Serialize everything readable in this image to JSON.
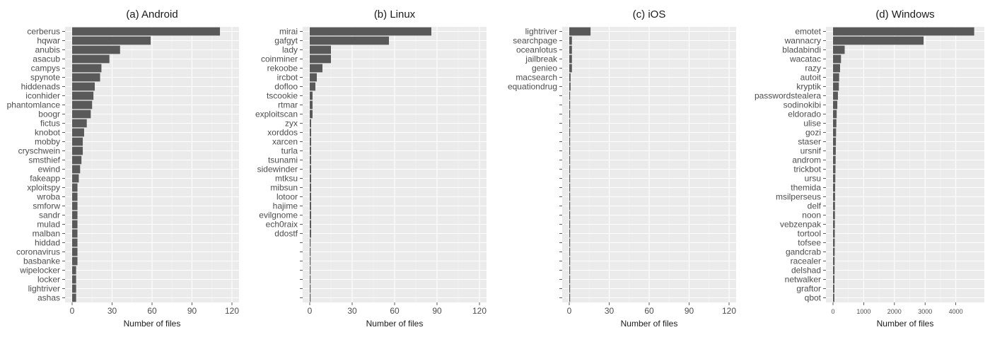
{
  "chart_data": [
    {
      "type": "bar",
      "orientation": "horizontal",
      "title": "(a) Android",
      "xlabel": "Number of files",
      "ylabel": "",
      "xlim": [
        0,
        120
      ],
      "xticks": [
        0,
        30,
        60,
        90,
        120
      ],
      "grid": true,
      "bar_color": "#595959",
      "categories": [
        "cerberus",
        "hqwar",
        "anubis",
        "asacub",
        "campys",
        "spynote",
        "hiddenads",
        "iconhider",
        "phantomlance",
        "boogr",
        "fictus",
        "knobot",
        "mobby",
        "cryschwein",
        "smsthief",
        "ewind",
        "fakeapp",
        "xploitspy",
        "wroba",
        "smforw",
        "sandr",
        "mulad",
        "malban",
        "hiddad",
        "coronavirus",
        "basbanke",
        "wipelocker",
        "locker",
        "lightriver",
        "ashas"
      ],
      "values": [
        111,
        59,
        36,
        28,
        22,
        21,
        17,
        16,
        15,
        14,
        11,
        9,
        8,
        8,
        7,
        6,
        5,
        4,
        4,
        4,
        4,
        4,
        4,
        4,
        4,
        4,
        3,
        3,
        3,
        3
      ]
    },
    {
      "type": "bar",
      "orientation": "horizontal",
      "title": "(b) Linux",
      "xlabel": "Number of files",
      "ylabel": "",
      "xlim": [
        0,
        120
      ],
      "xticks": [
        0,
        30,
        60,
        90,
        120
      ],
      "grid": true,
      "bar_color": "#595959",
      "categories": [
        "mirai",
        "gafgyt",
        "lady",
        "coinminer",
        "rekoobe",
        "ircbot",
        "dofloo",
        "tscookie",
        "rtmar",
        "exploitscan",
        "zyx",
        "xorddos",
        "xarcen",
        "turla",
        "tsunami",
        "sidewinder",
        "mtksu",
        "mibsun",
        "lotoor",
        "hajime",
        "evilgnome",
        "ech0raix",
        "ddostf",
        "",
        "",
        "",
        "",
        "",
        "",
        ""
      ],
      "values": [
        86,
        56,
        15,
        15,
        9,
        5,
        4,
        2,
        2,
        2,
        1,
        1,
        1,
        1,
        1,
        1,
        1,
        1,
        1,
        1,
        1,
        1,
        1,
        0.5,
        0.5,
        0.5,
        0.5,
        0.5,
        0.5,
        0.5
      ]
    },
    {
      "type": "bar",
      "orientation": "horizontal",
      "title": "(c) iOS",
      "xlabel": "Number of files",
      "ylabel": "",
      "xlim": [
        0,
        120
      ],
      "xticks": [
        0,
        30,
        60,
        90,
        120
      ],
      "grid": true,
      "bar_color": "#595959",
      "categories": [
        "lightriver",
        "searchpage",
        "oceanlotus",
        "jailbreak",
        "genieo",
        "macsearch",
        "equationdrug",
        "",
        "",
        "",
        "",
        "",
        "",
        "",
        "",
        "",
        "",
        "",
        "",
        "",
        "",
        "",
        "",
        "",
        "",
        "",
        "",
        "",
        "",
        ""
      ],
      "values": [
        16,
        2,
        2,
        2,
        2,
        1,
        1,
        0.5,
        0.5,
        0.5,
        0.5,
        0.5,
        0.5,
        0.5,
        0.5,
        0.5,
        0.5,
        0.5,
        0.5,
        0.5,
        0.5,
        0.5,
        0.5,
        0.5,
        0.5,
        0.5,
        0.5,
        0.5,
        0.5,
        0.5
      ]
    },
    {
      "type": "bar",
      "orientation": "horizontal",
      "title": "(d) Windows",
      "xlabel": "Number of files",
      "ylabel": "",
      "xlim": [
        0,
        4700
      ],
      "xticks": [
        0,
        1000,
        2000,
        3000,
        4000
      ],
      "grid": true,
      "bar_color": "#595959",
      "categories": [
        "emotet",
        "wannacry",
        "bladabindi",
        "wacatac",
        "razy",
        "autoit",
        "kryptik",
        "passwordstealera",
        "sodinokibi",
        "eldorado",
        "ulise",
        "gozi",
        "staser",
        "ursnif",
        "androm",
        "trickbot",
        "ursu",
        "themida",
        "msilperseus",
        "delf",
        "noon",
        "vebzenpak",
        "tortool",
        "tofsee",
        "gandcrab",
        "racealer",
        "delshad",
        "netwalker",
        "graftor",
        "qbot"
      ],
      "values": [
        4600,
        2950,
        380,
        260,
        230,
        200,
        190,
        160,
        140,
        120,
        110,
        100,
        95,
        90,
        85,
        80,
        75,
        70,
        68,
        65,
        63,
        60,
        58,
        56,
        54,
        52,
        50,
        48,
        46,
        44
      ]
    }
  ]
}
